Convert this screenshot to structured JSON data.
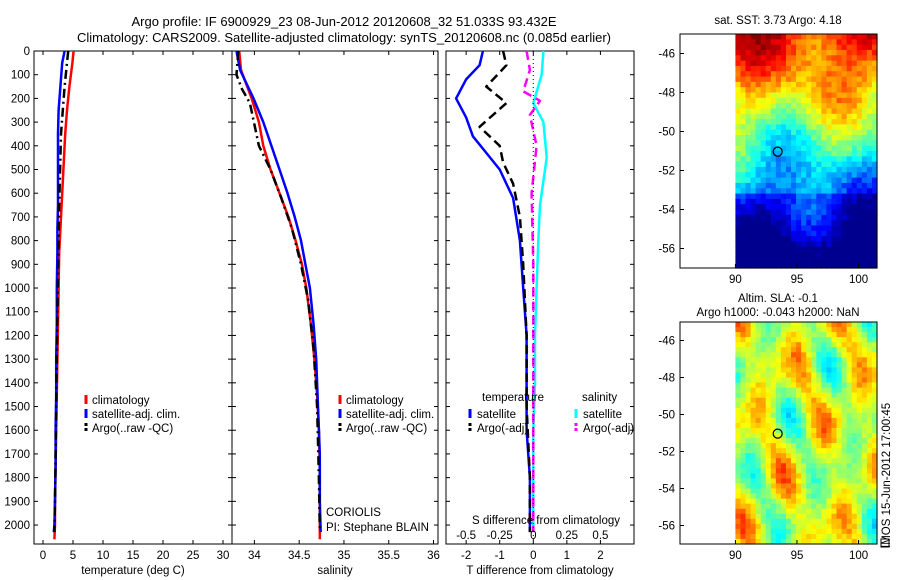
{
  "header": {
    "title_line1": "Argo profile: IF 6900929_23 08-Jun-2012 20120608_32 51.033S 93.432E",
    "title_line2": "Climatology: CARS2009. Satellite-adjusted climatology: synTS_20120608.nc (0.085d earlier)"
  },
  "colors": {
    "climatology": "#ff0000",
    "satellite": "#0000ff",
    "argo": "#000000",
    "sat_salinity": "#00ffff",
    "argo_salinity": "#ff00ff"
  },
  "annotations": {
    "institution": "CORIOLIS",
    "pi": "PI: Stephane BLAIN",
    "stamp": "IMOS 15-Jun-2012 17:00:45"
  },
  "chart_data": [
    {
      "id": "temperature",
      "type": "line",
      "xlabel": "temperature (deg C)",
      "xlim": [
        -1.5,
        31.5
      ],
      "ylim": [
        0,
        2080
      ],
      "y_inverted": true,
      "xticks": [
        0,
        5,
        10,
        15,
        20,
        25,
        30
      ],
      "xticklabels": [
        "0",
        "5",
        "10",
        "15",
        "20",
        "25",
        "30"
      ],
      "yticks": [
        0,
        100,
        200,
        300,
        400,
        500,
        600,
        700,
        800,
        900,
        1000,
        1100,
        1200,
        1300,
        1400,
        1500,
        1600,
        1700,
        1800,
        1900,
        2000
      ],
      "yticklabels": [
        "0",
        "100",
        "200",
        "300",
        "400",
        "500",
        "600",
        "700",
        "800",
        "900",
        "1000",
        "1100",
        "1200",
        "1300",
        "1400",
        "1500",
        "1600",
        "1700",
        "1800",
        "1900",
        "2000"
      ],
      "legend": [
        "climatology",
        "satellite-adj. clim.",
        "Argo(..raw -QC)"
      ],
      "series": [
        {
          "name": "climatology",
          "style": "solid",
          "color": "#ff0000",
          "x": [
            5.1,
            4.9,
            4.4,
            4.0,
            3.7,
            3.5,
            3.3,
            3.1,
            2.9,
            2.7,
            2.6,
            2.5,
            2.4,
            2.3,
            2.2,
            2.1,
            2.0,
            2.0,
            1.9
          ],
          "y": [
            0,
            50,
            150,
            250,
            350,
            450,
            550,
            650,
            750,
            850,
            1000,
            1150,
            1300,
            1450,
            1600,
            1750,
            1900,
            2000,
            2060
          ]
        },
        {
          "name": "satellite-adj. clim.",
          "style": "solid",
          "color": "#0000ff",
          "x": [
            3.6,
            3.2,
            2.9,
            2.6,
            2.5,
            2.5,
            2.5,
            2.5,
            2.4,
            2.4,
            2.3,
            2.3,
            2.2,
            2.2,
            2.1,
            2.1,
            2.0,
            1.9,
            1.8
          ],
          "y": [
            0,
            50,
            150,
            250,
            350,
            450,
            550,
            650,
            750,
            850,
            1000,
            1150,
            1300,
            1450,
            1600,
            1750,
            1900,
            2000,
            2030
          ]
        },
        {
          "name": "Argo(..raw -QC)",
          "style": "dashdot",
          "color": "#000000",
          "x": [
            4.2,
            4.0,
            3.6,
            3.3,
            3.0,
            2.9,
            2.8,
            2.7,
            2.6,
            2.5,
            2.4,
            2.3,
            2.2,
            2.1,
            2.0,
            1.9
          ],
          "y": [
            0,
            50,
            150,
            250,
            350,
            450,
            550,
            650,
            800,
            950,
            1100,
            1300,
            1500,
            1700,
            1900,
            2030
          ]
        }
      ]
    },
    {
      "id": "salinity",
      "type": "line",
      "xlabel": "salinity",
      "xlim": [
        33.75,
        36.05
      ],
      "ylim": [
        0,
        2080
      ],
      "y_inverted": true,
      "xticks": [
        34,
        34.5,
        35,
        35.5,
        36
      ],
      "xticklabels": [
        "34",
        "34.5",
        "35",
        "35.5",
        "36"
      ],
      "legend": [
        "climatology",
        "satellite-adj. clim.",
        "Argo(..raw -QC)"
      ],
      "series": [
        {
          "name": "climatology",
          "style": "solid",
          "color": "#ff0000",
          "x": [
            33.83,
            33.85,
            33.97,
            34.05,
            34.1,
            34.18,
            34.28,
            34.38,
            34.46,
            34.53,
            34.58,
            34.63,
            34.67,
            34.7,
            34.72,
            34.73,
            34.73,
            34.73
          ],
          "y": [
            0,
            80,
            200,
            300,
            400,
            500,
            600,
            700,
            800,
            900,
            1000,
            1150,
            1300,
            1450,
            1600,
            1750,
            1900,
            2060
          ]
        },
        {
          "name": "satellite-adj. clim.",
          "style": "solid",
          "color": "#0000ff",
          "x": [
            33.8,
            33.84,
            33.99,
            34.1,
            34.19,
            34.28,
            34.37,
            34.45,
            34.52,
            34.57,
            34.62,
            34.66,
            34.69,
            34.71,
            34.73,
            34.73,
            34.74
          ],
          "y": [
            0,
            80,
            200,
            300,
            400,
            500,
            600,
            700,
            800,
            900,
            1000,
            1150,
            1300,
            1500,
            1700,
            1900,
            2030
          ]
        },
        {
          "name": "Argo(..raw -QC)",
          "style": "dashdot",
          "color": "#000000",
          "x": [
            33.82,
            33.8,
            33.86,
            33.95,
            34.05,
            34.18,
            34.3,
            34.42,
            34.52,
            34.6,
            34.66,
            34.7,
            34.72,
            34.73
          ],
          "y": [
            0,
            100,
            160,
            220,
            400,
            500,
            620,
            750,
            900,
            1050,
            1250,
            1500,
            1800,
            2030
          ]
        }
      ]
    },
    {
      "id": "differences",
      "type": "line",
      "xlabel": "T difference from climatology",
      "xlim": [
        -2.6,
        3.0
      ],
      "ylim": [
        0,
        2080
      ],
      "y_inverted": true,
      "xticks": [
        -2,
        -1,
        0,
        1,
        2
      ],
      "xticklabels": [
        "-2",
        "-1",
        "0",
        "1",
        "2"
      ],
      "secondary_xlabel": "S difference from climatology",
      "secondary_xticklabels": [
        "-0.5",
        "-0.25",
        "0",
        "0.25",
        "0.5"
      ],
      "secondary_xticks": [
        -2,
        -1,
        0,
        1,
        2
      ],
      "legend_groups": [
        {
          "heading": "temperature",
          "items": [
            "satellite",
            "Argo(-adj)"
          ]
        },
        {
          "heading": "salinity",
          "items": [
            "satellite",
            "Argo(-adj)"
          ]
        }
      ],
      "series": [
        {
          "name": "temperature satellite",
          "style": "solid",
          "color": "#0000ff",
          "x": [
            -1.5,
            -1.6,
            -2.0,
            -2.3,
            -2.0,
            -1.8,
            -1.4,
            -1.0,
            -0.6,
            -0.4,
            -0.3,
            -0.2,
            -0.2,
            -0.2,
            -0.1,
            -0.1,
            -0.1
          ],
          "y": [
            0,
            60,
            120,
            200,
            280,
            360,
            430,
            500,
            620,
            800,
            1000,
            1200,
            1400,
            1600,
            1800,
            2000,
            2030
          ]
        },
        {
          "name": "temperature Argo(-adj)",
          "style": "dashed",
          "color": "#000000",
          "x": [
            -0.9,
            -0.8,
            -1.4,
            -0.8,
            -1.6,
            -1.0,
            -0.9,
            -0.6,
            -0.4,
            -0.3,
            -0.2,
            -0.2,
            -0.1,
            -0.1
          ],
          "y": [
            0,
            60,
            150,
            220,
            320,
            400,
            470,
            560,
            700,
            900,
            1200,
            1500,
            1800,
            2030
          ]
        },
        {
          "name": "salinity satellite",
          "style": "solid",
          "color": "#00ffff",
          "x": [
            0.3,
            0.25,
            0.0,
            0.3,
            0.4,
            0.2,
            0.15,
            0.1,
            0.05,
            0.05,
            0.0,
            0.0,
            0.0
          ],
          "y": [
            0,
            100,
            220,
            300,
            450,
            650,
            800,
            1000,
            1200,
            1400,
            1600,
            1800,
            2030
          ]
        },
        {
          "name": "salinity Argo(-adj)",
          "style": "dashed",
          "color": "#ff00ff",
          "x": [
            -0.2,
            -0.1,
            -0.3,
            0.2,
            -0.1,
            0.1,
            -0.05,
            0.0,
            0.0,
            0.0
          ],
          "y": [
            0,
            80,
            170,
            210,
            270,
            400,
            600,
            900,
            1400,
            2030
          ]
        }
      ]
    },
    {
      "id": "sst_map",
      "type": "heatmap",
      "title": "sat. SST: 3.73 Argo: 4.18",
      "xticks": [
        90,
        95,
        100
      ],
      "xticklabels": [
        "90",
        "95",
        "100"
      ],
      "yticks": [
        -46,
        -48,
        -50,
        -52,
        -54,
        -56
      ],
      "yticklabels": [
        "-46",
        "-48",
        "-50",
        "-52",
        "-54",
        "-56"
      ],
      "xlim": [
        85.5,
        101.5
      ],
      "ylim": [
        -57,
        -45
      ],
      "data_lon_range": [
        90,
        101.5
      ],
      "marker": {
        "lon": 93.432,
        "lat": -51.033
      }
    },
    {
      "id": "sla_map",
      "type": "heatmap",
      "title": "Altim. SLA: -0.1",
      "subtitle": "Argo h1000: -0.043 h2000: NaN",
      "xticks": [
        90,
        95,
        100
      ],
      "xticklabels": [
        "90",
        "95",
        "100"
      ],
      "yticks": [
        -46,
        -48,
        -50,
        -52,
        -54,
        -56
      ],
      "yticklabels": [
        "-46",
        "-48",
        "-50",
        "-52",
        "-54",
        "-56"
      ],
      "xlim": [
        85.5,
        101.5
      ],
      "ylim": [
        -57,
        -45
      ],
      "data_lon_range": [
        90,
        101.5
      ],
      "marker": {
        "lon": 93.432,
        "lat": -51.033
      }
    }
  ]
}
